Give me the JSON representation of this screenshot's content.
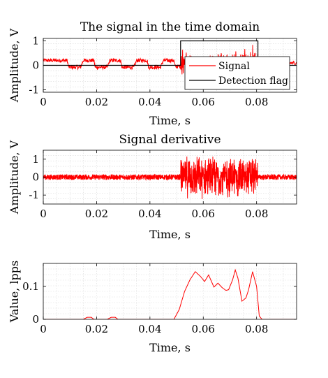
{
  "chart_data": [
    {
      "type": "line",
      "title": "The signal in the time domain",
      "xlabel": "Time, s",
      "ylabel": "Amplitude, V",
      "xlim": [
        0,
        0.095
      ],
      "ylim": [
        -1.1,
        1.1
      ],
      "xticks": [
        0,
        0.02,
        0.04,
        0.06,
        0.08
      ],
      "xtick_labels": [
        "0",
        "0.02",
        "0.04",
        "0.06",
        "0.08"
      ],
      "yticks": [
        -1,
        0,
        1
      ],
      "ytick_labels": [
        "-1",
        "0",
        "1"
      ],
      "grid": true,
      "legend_position": "right",
      "series": [
        {
          "name": "Signal",
          "color": "#ff0000",
          "description_points": [
            [
              0,
              0.2
            ],
            [
              0.009,
              0.2
            ],
            [
              0.0095,
              -0.08
            ],
            [
              0.014,
              -0.08
            ],
            [
              0.015,
              0.2
            ],
            [
              0.019,
              0.2
            ],
            [
              0.0195,
              -0.08
            ],
            [
              0.024,
              -0.08
            ],
            [
              0.025,
              0.2
            ],
            [
              0.029,
              0.2
            ],
            [
              0.0295,
              -0.08
            ],
            [
              0.034,
              -0.08
            ],
            [
              0.035,
              0.2
            ],
            [
              0.039,
              0.2
            ],
            [
              0.0395,
              -0.08
            ],
            [
              0.044,
              -0.08
            ],
            [
              0.045,
              0.2
            ],
            [
              0.049,
              0.2
            ],
            [
              0.0495,
              -0.05
            ],
            [
              0.095,
              0.1
            ]
          ]
        },
        {
          "name": "Detection flag",
          "color": "#000000",
          "points": [
            [
              0,
              0
            ],
            [
              0.0515,
              0
            ],
            [
              0.0515,
              1
            ],
            [
              0.0805,
              1
            ],
            [
              0.0805,
              0
            ],
            [
              0.095,
              0
            ]
          ]
        }
      ]
    },
    {
      "type": "line",
      "title": "Signal derivative",
      "xlabel": "Time, s",
      "ylabel": "Amplitude, V",
      "xlim": [
        0,
        0.095
      ],
      "ylim": [
        -1.5,
        1.5
      ],
      "xticks": [
        0,
        0.02,
        0.04,
        0.06,
        0.08
      ],
      "xtick_labels": [
        "0",
        "0.02",
        "0.04",
        "0.06",
        "0.08"
      ],
      "yticks": [
        -1,
        0,
        1
      ],
      "ytick_labels": [
        "-1",
        "0",
        "1"
      ],
      "grid": true,
      "series": [
        {
          "color": "#ff0000",
          "noise_segments": [
            {
              "x": [
                0,
                0.0515
              ],
              "amplitude": 0.15
            },
            {
              "x": [
                0.0515,
                0.0805
              ],
              "amplitude": 1.3
            },
            {
              "x": [
                0.0805,
                0.095
              ],
              "amplitude": 0.15
            }
          ]
        }
      ]
    },
    {
      "type": "line",
      "title": "",
      "xlabel": "Time, s",
      "ylabel": "Value, lpps",
      "xlim": [
        0,
        0.095
      ],
      "ylim": [
        0,
        0.17
      ],
      "xticks": [
        0,
        0.02,
        0.04,
        0.06,
        0.08
      ],
      "xtick_labels": [
        "0",
        "0.02",
        "0.04",
        "0.06",
        "0.08"
      ],
      "yticks": [
        0,
        0.1
      ],
      "ytick_labels": [
        "0",
        "0.1"
      ],
      "grid": true,
      "series": [
        {
          "color": "#ff0000",
          "points": [
            [
              0,
              0
            ],
            [
              0.015,
              0
            ],
            [
              0.0165,
              0.006
            ],
            [
              0.018,
              0.006
            ],
            [
              0.019,
              0
            ],
            [
              0.024,
              0
            ],
            [
              0.0255,
              0.006
            ],
            [
              0.027,
              0.006
            ],
            [
              0.028,
              0
            ],
            [
              0.049,
              0
            ],
            [
              0.051,
              0.03
            ],
            [
              0.053,
              0.085
            ],
            [
              0.055,
              0.12
            ],
            [
              0.057,
              0.145
            ],
            [
              0.059,
              0.13
            ],
            [
              0.0605,
              0.115
            ],
            [
              0.062,
              0.135
            ],
            [
              0.064,
              0.098
            ],
            [
              0.0655,
              0.11
            ],
            [
              0.067,
              0.097
            ],
            [
              0.0685,
              0.088
            ],
            [
              0.0695,
              0.09
            ],
            [
              0.071,
              0.12
            ],
            [
              0.072,
              0.15
            ],
            [
              0.073,
              0.125
            ],
            [
              0.0745,
              0.055
            ],
            [
              0.076,
              0.065
            ],
            [
              0.077,
              0.09
            ],
            [
              0.0785,
              0.145
            ],
            [
              0.08,
              0.1
            ],
            [
              0.081,
              0.01
            ],
            [
              0.082,
              0
            ],
            [
              0.095,
              0
            ]
          ]
        }
      ]
    }
  ]
}
